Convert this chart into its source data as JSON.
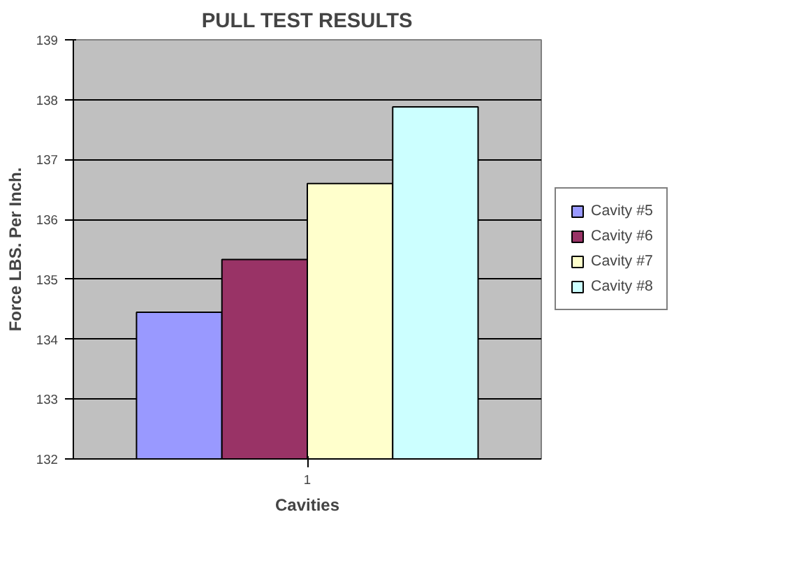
{
  "chart_data": {
    "type": "bar",
    "title": "PULL TEST RESULTS",
    "xlabel": "Cavities",
    "ylabel": "Force LBS. Per Inch.",
    "categories": [
      "1"
    ],
    "series": [
      {
        "name": "Cavity #5",
        "color": "#9999ff",
        "values": [
          134.45
        ]
      },
      {
        "name": "Cavity #6",
        "color": "#993366",
        "values": [
          135.33
        ]
      },
      {
        "name": "Cavity #7",
        "color": "#ffffcc",
        "values": [
          136.6
        ]
      },
      {
        "name": "Cavity #8",
        "color": "#ccffff",
        "values": [
          137.88
        ]
      }
    ],
    "ylim": [
      132,
      139
    ],
    "yticks": [
      132,
      133,
      134,
      135,
      136,
      137,
      138,
      139
    ],
    "grid": "y",
    "legend": "right"
  }
}
